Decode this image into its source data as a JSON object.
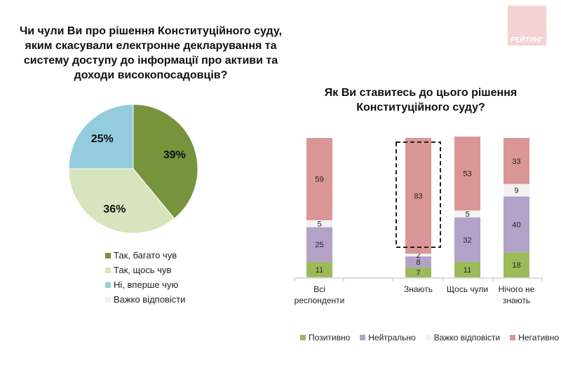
{
  "chart_data": [
    {
      "type": "pie",
      "title": "Чи чули Ви про рішення Конституційного суду, яким скасували електронне декларування та систему доступу до інформації про активи та доходи високопосадовців?",
      "slices": [
        {
          "label": "Так, багато чув",
          "value": 39,
          "display": "39%",
          "color": "#77933c"
        },
        {
          "label": "Так, щось чув",
          "value": 36,
          "display": "36%",
          "color": "#d7e4bd"
        },
        {
          "label": "Ні, вперше чую",
          "value": 25,
          "display": "25%",
          "color": "#93cddd"
        },
        {
          "label": "Важко відповісти",
          "value": 0,
          "display": "",
          "color": "#f2f2f2"
        }
      ],
      "legend": "bottom"
    },
    {
      "type": "bar",
      "stacked": true,
      "title": "Як Ви ставитесь до цього рішення Конституційного суду?",
      "categories": [
        "Всі респонденти",
        "",
        "Знають",
        "Щось чули",
        "Нічого не знають"
      ],
      "series": [
        {
          "name": "Позитивно",
          "color": "#9bbb59",
          "values": [
            11,
            null,
            7,
            11,
            18
          ]
        },
        {
          "name": "Нейтрально",
          "color": "#b3a2c7",
          "values": [
            25,
            null,
            8,
            32,
            40
          ]
        },
        {
          "name": "Важко відповісти",
          "color": "#f2f2f2",
          "values": [
            5,
            null,
            2,
            5,
            9
          ]
        },
        {
          "name": "Негативно",
          "color": "#d99694",
          "values": [
            59,
            null,
            83,
            53,
            33
          ]
        }
      ],
      "ylim": [
        0,
        100
      ],
      "legend": "bottom",
      "highlight": "Знають"
    }
  ],
  "logo": "РЕЙТИНГ"
}
